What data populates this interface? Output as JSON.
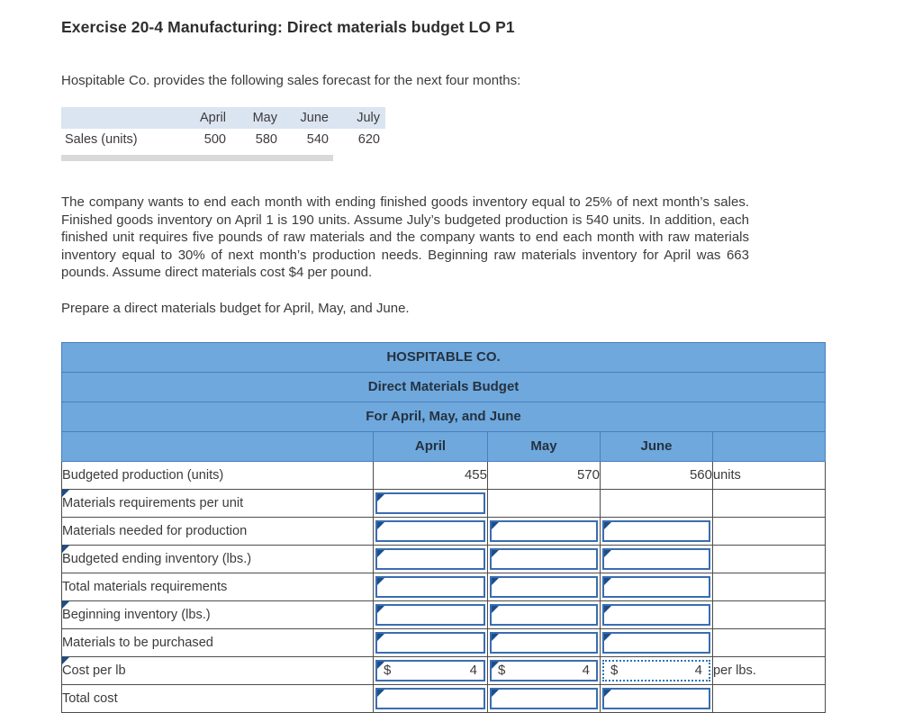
{
  "title": "Exercise 20-4 Manufacturing: Direct materials budget LO P1",
  "intro": "Hospitable Co. provides the following sales forecast for the next four months:",
  "sales_table": {
    "columns": [
      "April",
      "May",
      "June",
      "July"
    ],
    "row_label": "Sales (units)",
    "values": [
      "500",
      "580",
      "540",
      "620"
    ]
  },
  "paragraph": "The company wants to end each month with ending finished goods inventory equal to 25% of next month’s sales. Finished goods inventory on April 1 is 190 units. Assume July’s budgeted production is 540 units. In addition, each finished unit requires five pounds of raw materials and the company wants to end each month with raw materials inventory equal to 30% of next month’s production needs. Beginning raw materials inventory for April was 663 pounds. Assume direct materials cost $4 per pound.",
  "instruction": "Prepare a direct materials budget for April, May, and June.",
  "budget_table": {
    "title_lines": [
      "HOSPITABLE CO.",
      "Direct Materials Budget",
      "For April, May, and June"
    ],
    "columns": [
      "April",
      "May",
      "June"
    ],
    "rows": [
      {
        "label": "Budgeted production (units)",
        "label_marker": false,
        "cells": [
          {
            "type": "text",
            "value": "455"
          },
          {
            "type": "text",
            "value": "570"
          },
          {
            "type": "text",
            "value": "560"
          }
        ],
        "suffix": "units"
      },
      {
        "label": "Materials requirements per unit",
        "label_marker": true,
        "cells": [
          {
            "type": "input"
          },
          {
            "type": "empty"
          },
          {
            "type": "empty"
          }
        ],
        "suffix": ""
      },
      {
        "label": "Materials needed for production",
        "label_marker": false,
        "cells": [
          {
            "type": "input"
          },
          {
            "type": "input"
          },
          {
            "type": "input"
          }
        ],
        "suffix": ""
      },
      {
        "label": "Budgeted ending inventory (lbs.)",
        "label_marker": true,
        "cells": [
          {
            "type": "input"
          },
          {
            "type": "input"
          },
          {
            "type": "input"
          }
        ],
        "suffix": ""
      },
      {
        "label": "Total materials requirements",
        "label_marker": false,
        "cells": [
          {
            "type": "input"
          },
          {
            "type": "input"
          },
          {
            "type": "input"
          }
        ],
        "suffix": ""
      },
      {
        "label": "Beginning inventory (lbs.)",
        "label_marker": true,
        "cells": [
          {
            "type": "input"
          },
          {
            "type": "input"
          },
          {
            "type": "input"
          }
        ],
        "suffix": ""
      },
      {
        "label": "Materials to be purchased",
        "label_marker": false,
        "cells": [
          {
            "type": "input"
          },
          {
            "type": "input"
          },
          {
            "type": "input"
          }
        ],
        "suffix": ""
      },
      {
        "label": "Cost per lb",
        "label_marker": true,
        "cells": [
          {
            "type": "currency",
            "prefix": "$",
            "value": "4"
          },
          {
            "type": "currency",
            "prefix": "$",
            "value": "4"
          },
          {
            "type": "currency",
            "prefix": "$",
            "value": "4",
            "selected": true
          }
        ],
        "suffix": "per lbs."
      },
      {
        "label": "Total cost",
        "label_marker": false,
        "cells": [
          {
            "type": "input"
          },
          {
            "type": "input"
          },
          {
            "type": "input"
          }
        ],
        "suffix": ""
      }
    ]
  },
  "colors": {
    "header_blue": "#6fa8dc",
    "header_border": "#4a7ebf",
    "input_border": "#3a6db0",
    "marker": "#1c4d8c",
    "selected": "#2f74b5",
    "sales_header_bg": "#dbe5f1",
    "scrollbar_gray": "#d9d9d9",
    "grid": "#4d4d4d",
    "text": "#3b3b3b"
  }
}
